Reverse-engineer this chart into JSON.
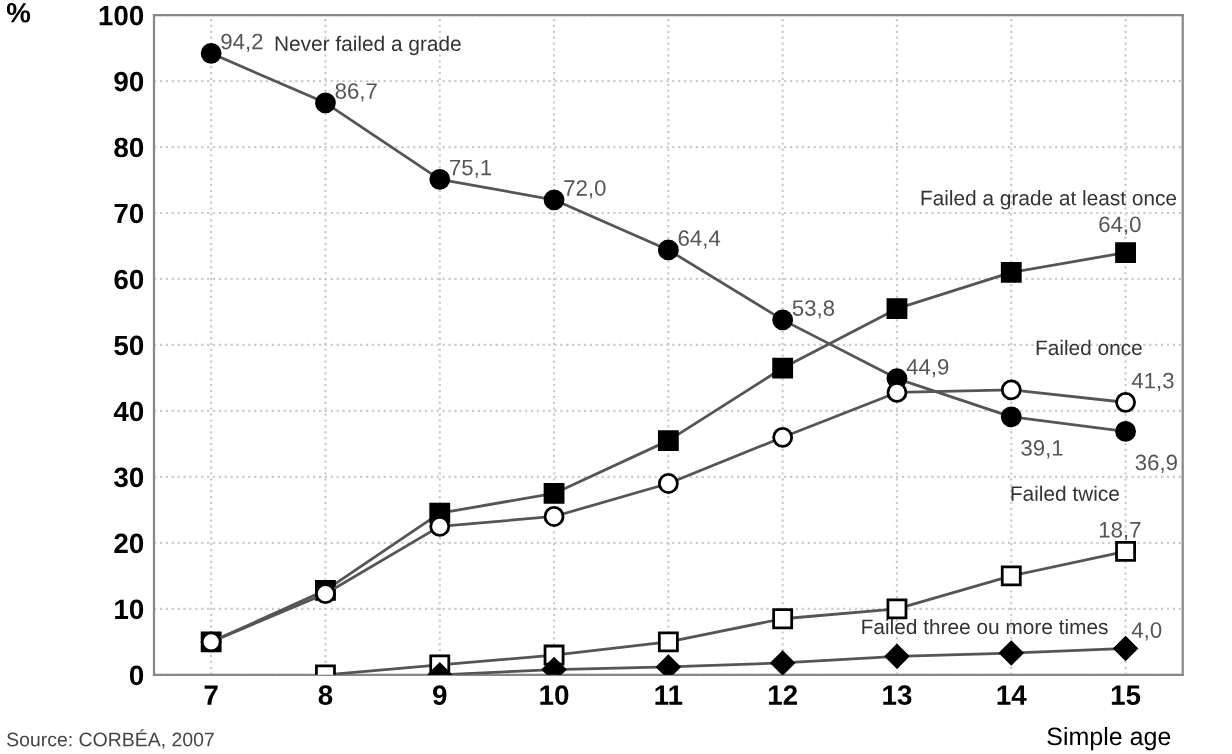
{
  "chart_data": {
    "type": "line",
    "xlabel": "Simple age",
    "ylabel": "%",
    "x": [
      7,
      8,
      9,
      10,
      11,
      12,
      13,
      14,
      15
    ],
    "xlim": [
      6.5,
      15.5
    ],
    "xticks": [
      7,
      8,
      9,
      10,
      11,
      12,
      13,
      14,
      15
    ],
    "ylim": [
      0,
      100
    ],
    "yticks": [
      0,
      10,
      20,
      30,
      40,
      50,
      60,
      70,
      80,
      90,
      100
    ],
    "grid": true,
    "legend": false,
    "line_style": "solid",
    "annotations": [
      "Source: CORBÉA, 2007"
    ],
    "series": [
      {
        "name": "Never failed a grade",
        "color": "#000000",
        "marker": "circle",
        "values": [
          94.2,
          86.7,
          75.1,
          72.0,
          64.4,
          53.8,
          44.9,
          39.1,
          36.9
        ],
        "value_labels": [
          "94,2",
          "86,7",
          "75,1",
          "72,0",
          "64,4",
          "53,8",
          "44,9",
          "39,1",
          "36,9"
        ]
      },
      {
        "name": "Failed a grade at least once",
        "color": "#000000",
        "marker": "square",
        "values": [
          5,
          12.8,
          24.5,
          27.5,
          35.5,
          46.5,
          55.5,
          61,
          64.0
        ],
        "value_labels": [
          null,
          null,
          null,
          null,
          null,
          null,
          null,
          null,
          "64,0"
        ]
      },
      {
        "name": "Failed once",
        "color": "#ffffff",
        "marker": "circle",
        "values": [
          5,
          12.3,
          22.5,
          24,
          29,
          36,
          42.8,
          43.2,
          41.3
        ],
        "value_labels": [
          null,
          null,
          null,
          null,
          null,
          null,
          null,
          null,
          "41,3"
        ]
      },
      {
        "name": "Failed twice",
        "color": "#ffffff",
        "marker": "square",
        "values": [
          null,
          0,
          1.5,
          3,
          5,
          8.5,
          10,
          15,
          18.7
        ],
        "value_labels": [
          null,
          null,
          null,
          null,
          null,
          null,
          null,
          null,
          "18,7"
        ]
      },
      {
        "name": "Failed three ou more times",
        "color": "#000000",
        "marker": "diamond",
        "values": [
          null,
          null,
          0,
          0.8,
          1.2,
          1.8,
          2.8,
          3.3,
          4.0
        ],
        "value_labels": [
          null,
          null,
          null,
          null,
          null,
          null,
          null,
          null,
          "4,0"
        ]
      }
    ]
  }
}
